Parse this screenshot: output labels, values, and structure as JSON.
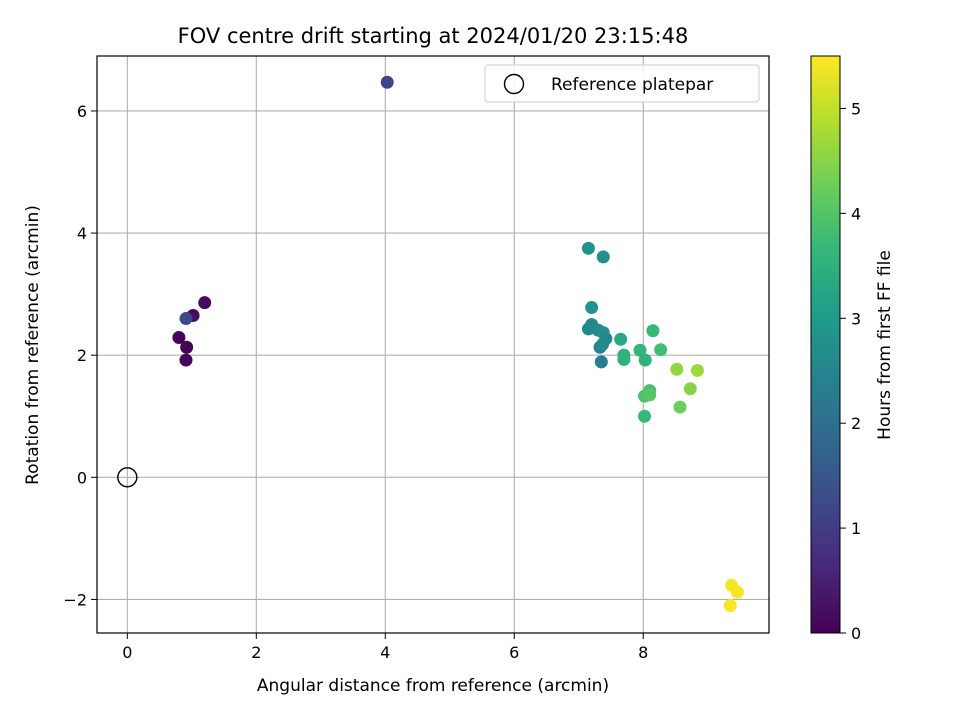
{
  "chart_data": {
    "type": "scatter",
    "title": "FOV centre drift starting at 2024/01/20 23:15:48",
    "xlabel": "Angular distance from reference (arcmin)",
    "ylabel": "Rotation from reference (arcmin)",
    "xlim": [
      -0.47,
      9.95
    ],
    "ylim": [
      -2.55,
      6.9
    ],
    "xticks": [
      0,
      2,
      4,
      6,
      8
    ],
    "yticks": [
      -2,
      0,
      2,
      4,
      6
    ],
    "grid": true,
    "legend": {
      "placement": "top-right",
      "entries": [
        "Reference platepar"
      ]
    },
    "reference": {
      "name": "Reference platepar",
      "x": 0,
      "y": 0
    },
    "colorbar": {
      "label": "Hours from first FF file",
      "colormap": "viridis",
      "range": [
        0,
        5.5
      ],
      "ticks": [
        0,
        1,
        2,
        3,
        4,
        5
      ]
    },
    "points": [
      {
        "x": 1.2,
        "y": 2.86,
        "c": 0.15
      },
      {
        "x": 1.02,
        "y": 2.65,
        "c": 0.2
      },
      {
        "x": 0.8,
        "y": 2.29,
        "c": 0.05
      },
      {
        "x": 0.92,
        "y": 2.13,
        "c": 0.05
      },
      {
        "x": 0.91,
        "y": 1.92,
        "c": 0.1
      },
      {
        "x": 0.91,
        "y": 2.6,
        "c": 1.2
      },
      {
        "x": 4.03,
        "y": 6.47,
        "c": 1.15
      },
      {
        "x": 7.15,
        "y": 3.75,
        "c": 2.8
      },
      {
        "x": 7.38,
        "y": 3.61,
        "c": 2.7
      },
      {
        "x": 7.2,
        "y": 2.78,
        "c": 2.85
      },
      {
        "x": 7.2,
        "y": 2.5,
        "c": 2.55
      },
      {
        "x": 7.15,
        "y": 2.43,
        "c": 2.6
      },
      {
        "x": 7.3,
        "y": 2.41,
        "c": 2.65
      },
      {
        "x": 7.38,
        "y": 2.37,
        "c": 2.7
      },
      {
        "x": 7.42,
        "y": 2.27,
        "c": 2.5
      },
      {
        "x": 7.33,
        "y": 2.13,
        "c": 2.4
      },
      {
        "x": 7.37,
        "y": 2.18,
        "c": 2.6
      },
      {
        "x": 7.35,
        "y": 1.89,
        "c": 2.35
      },
      {
        "x": 7.65,
        "y": 2.26,
        "c": 3.3
      },
      {
        "x": 7.7,
        "y": 2.0,
        "c": 3.5
      },
      {
        "x": 7.7,
        "y": 1.93,
        "c": 3.55
      },
      {
        "x": 7.95,
        "y": 2.08,
        "c": 3.6
      },
      {
        "x": 8.03,
        "y": 1.92,
        "c": 3.55
      },
      {
        "x": 8.15,
        "y": 2.4,
        "c": 3.7
      },
      {
        "x": 8.27,
        "y": 2.09,
        "c": 3.8
      },
      {
        "x": 8.1,
        "y": 1.42,
        "c": 3.9
      },
      {
        "x": 8.02,
        "y": 1.33,
        "c": 3.95
      },
      {
        "x": 8.1,
        "y": 1.35,
        "c": 4.05
      },
      {
        "x": 8.02,
        "y": 1.0,
        "c": 3.7
      },
      {
        "x": 8.52,
        "y": 1.77,
        "c": 4.6
      },
      {
        "x": 8.84,
        "y": 1.75,
        "c": 4.7
      },
      {
        "x": 8.73,
        "y": 1.45,
        "c": 4.5
      },
      {
        "x": 8.57,
        "y": 1.15,
        "c": 4.25
      },
      {
        "x": 9.37,
        "y": -1.77,
        "c": 5.42
      },
      {
        "x": 9.46,
        "y": -1.88,
        "c": 5.44
      },
      {
        "x": 9.35,
        "y": -2.1,
        "c": 5.45
      }
    ]
  }
}
